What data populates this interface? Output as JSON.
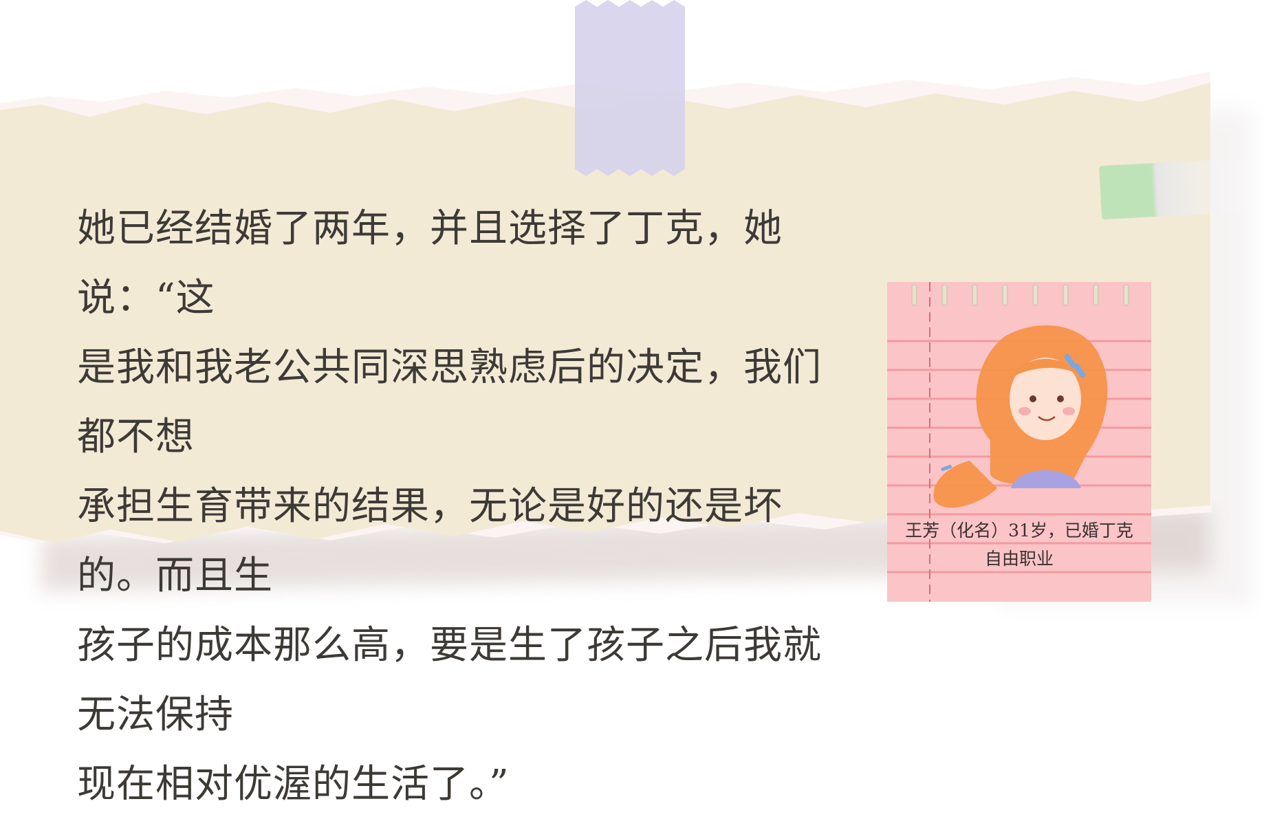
{
  "quote": {
    "lines": [
      "她已经结婚了两年，并且选择了丁克，她说：“这",
      "是我和我老公共同深思熟虑后的决定，我们都不想",
      "承担生育带来的结果，无论是好的还是坏的。而且生",
      "孩子的成本那么高，要是生了孩子之后我就无法保持",
      "现在相对优渥的生活了。”"
    ]
  },
  "profile": {
    "line1": "王芳（化名）31岁，已婚丁克",
    "line2": "自由职业"
  },
  "colors": {
    "paper": "#f3ead6",
    "notepad": "#fbc4c6",
    "notepad_line": "#f29aa1",
    "tape_purple": "#d6d2ec",
    "tape_green": "#bfe3b8",
    "hair": "#f6934a",
    "text": "#3d3a36"
  }
}
